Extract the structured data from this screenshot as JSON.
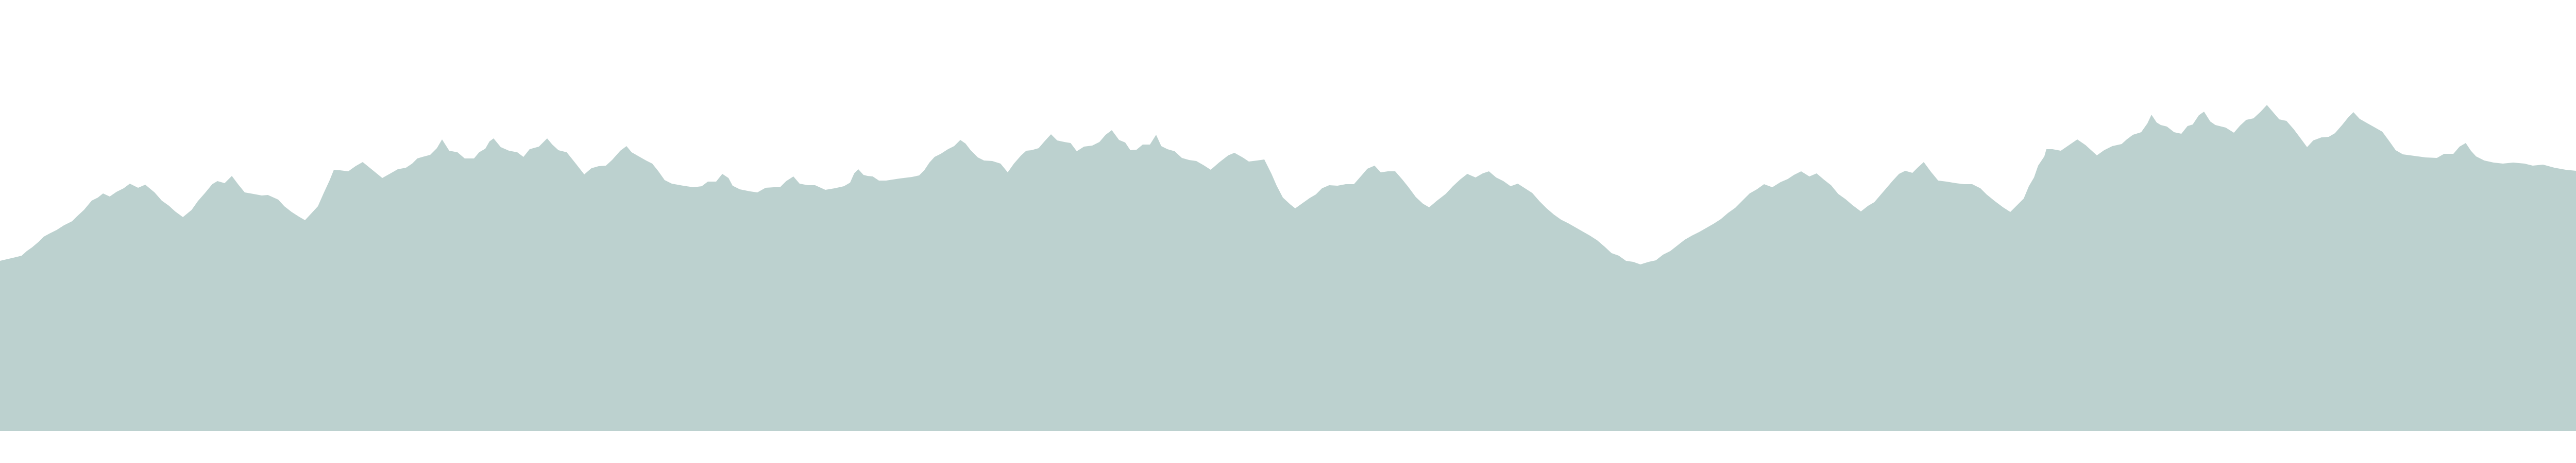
{
  "scene": {
    "background_color": "#ffffff",
    "fill_color": "#bcd1cf",
    "icon": "mountain-silhouette"
  }
}
